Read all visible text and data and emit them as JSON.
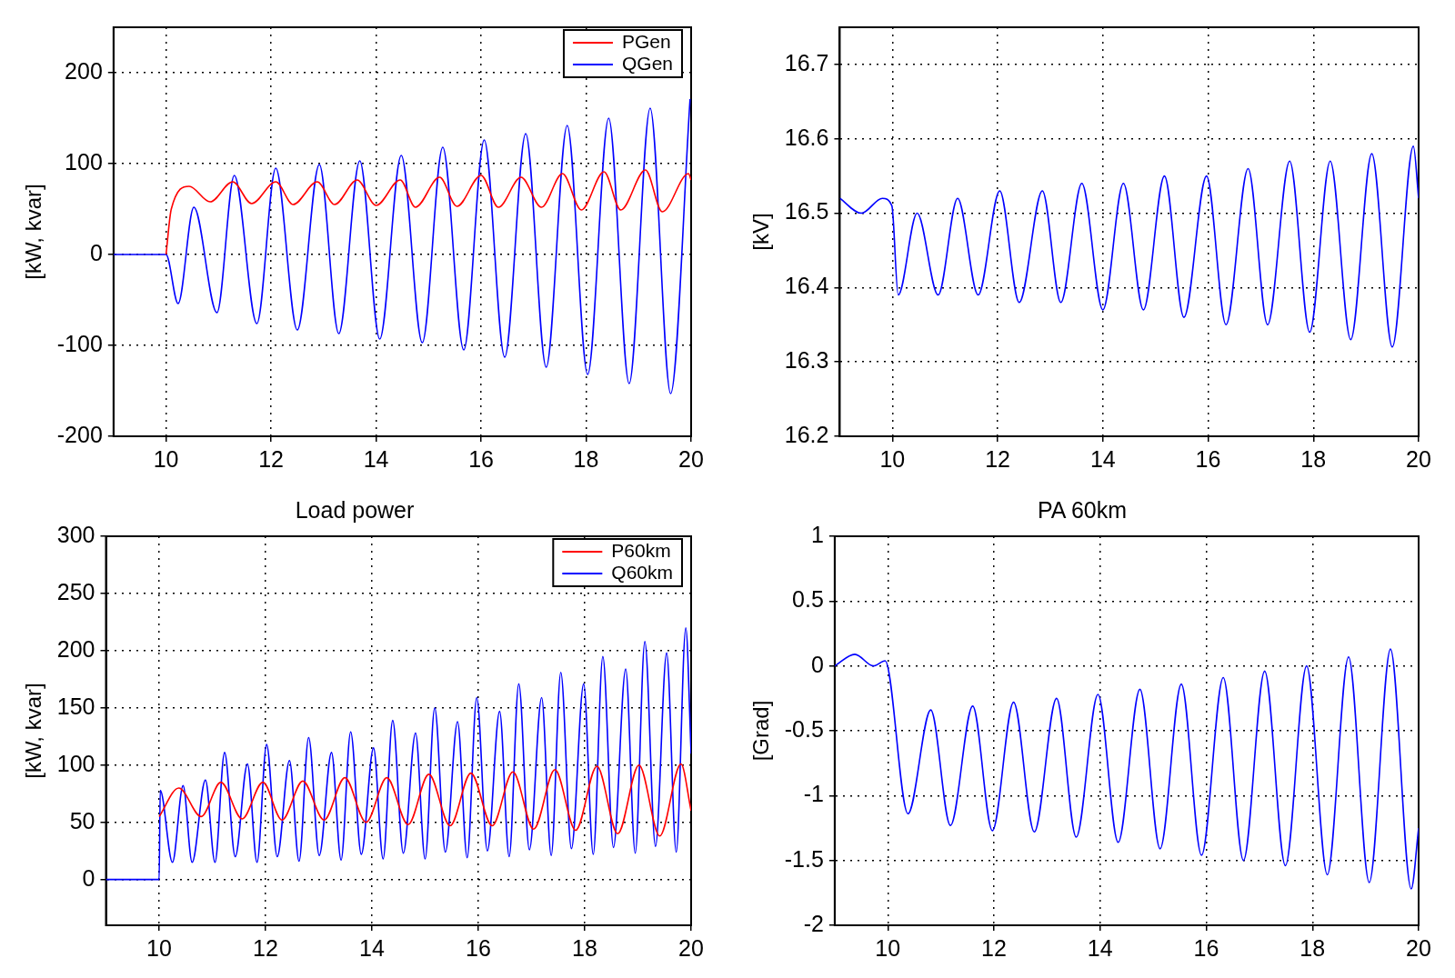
{
  "chart_data": [
    {
      "type": "line",
      "ylabel": "[kW, kvar]",
      "xlim": [
        9,
        20
      ],
      "xticks": [
        10,
        12,
        14,
        16,
        18,
        20
      ],
      "ylim": [
        -200,
        250
      ],
      "yticks": [
        -200,
        -100,
        0,
        100,
        200
      ],
      "grid": true,
      "legend": "top right",
      "marker": "none",
      "series": [
        {
          "name": "PGen",
          "color": "#ff0000",
          "x": [
            10,
            10.1,
            10.44,
            10.84,
            11.27,
            11.63,
            12.09,
            12.42,
            12.88,
            13.21,
            13.64,
            14.0,
            14.46,
            14.75,
            15.21,
            15.54,
            16.0,
            16.33,
            16.76,
            17.15,
            17.55,
            17.91,
            18.34,
            18.66,
            19.13,
            19.45,
            19.95,
            20
          ],
          "values": [
            0,
            50,
            75,
            58,
            80,
            56,
            80,
            55,
            80,
            55,
            82,
            54,
            82,
            52,
            85,
            53,
            87,
            52,
            85,
            52,
            89,
            49,
            91,
            49,
            93,
            47,
            89,
            82
          ]
        },
        {
          "name": "QGen",
          "color": "#0000ff",
          "x": [
            9,
            10,
            10.23,
            10.53,
            10.97,
            11.3,
            11.73,
            12.09,
            12.5,
            12.92,
            13.29,
            13.69,
            14.07,
            14.48,
            14.88,
            15.27,
            15.67,
            16.06,
            16.45,
            16.85,
            17.24,
            17.64,
            18.03,
            18.43,
            18.82,
            19.22,
            19.61,
            19.98
          ],
          "values": [
            0,
            0,
            -54,
            52,
            -64,
            87,
            -76,
            95,
            -83,
            99,
            -87,
            103,
            -93,
            109,
            -97,
            118,
            -105,
            126,
            -113,
            133,
            -124,
            142,
            -132,
            150,
            -142,
            161,
            -153,
            171
          ]
        }
      ]
    },
    {
      "type": "line",
      "ylabel": "[kV]",
      "xlim": [
        9,
        20
      ],
      "xticks": [
        10,
        12,
        14,
        16,
        18,
        20
      ],
      "ylim": [
        16.2,
        16.75
      ],
      "yticks": [
        16.2,
        16.3,
        16.4,
        16.5,
        16.6,
        16.7
      ],
      "grid": true,
      "marker": "none",
      "series": [
        {
          "color": "#0000ff",
          "x": [
            9,
            9.41,
            9.81,
            9.99,
            10.11,
            10.47,
            10.87,
            11.24,
            11.63,
            12.04,
            12.41,
            12.85,
            13.2,
            13.6,
            14.0,
            14.39,
            14.77,
            15.17,
            15.54,
            15.97,
            16.34,
            16.76,
            17.13,
            17.55,
            17.93,
            18.32,
            18.71,
            19.11,
            19.5,
            19.9,
            20
          ],
          "values": [
            16.52,
            16.5,
            16.52,
            16.51,
            16.39,
            16.5,
            16.39,
            16.52,
            16.39,
            16.53,
            16.38,
            16.53,
            16.38,
            16.54,
            16.37,
            16.54,
            16.37,
            16.55,
            16.36,
            16.55,
            16.35,
            16.56,
            16.35,
            16.57,
            16.34,
            16.57,
            16.33,
            16.58,
            16.32,
            16.59,
            16.52
          ]
        }
      ]
    },
    {
      "type": "line",
      "title": "Load power",
      "ylabel": "[kW, kvar]",
      "xlim": [
        9,
        20
      ],
      "xticks": [
        10,
        12,
        14,
        16,
        18,
        20
      ],
      "ylim": [
        -40,
        300
      ],
      "yticks": [
        0,
        50,
        100,
        150,
        200,
        250,
        300
      ],
      "grid": true,
      "legend": "top right",
      "marker": "none",
      "series": [
        {
          "name": "P60km",
          "color": "#ff0000",
          "x": [
            10,
            10.37,
            10.79,
            11.16,
            11.56,
            11.95,
            12.31,
            12.7,
            13.1,
            13.49,
            13.89,
            14.28,
            14.68,
            15.07,
            15.47,
            15.86,
            16.26,
            16.65,
            17.04,
            17.44,
            17.83,
            18.23,
            18.62,
            19.02,
            19.41,
            19.81,
            20
          ],
          "values": [
            55,
            80,
            55,
            85,
            53,
            85,
            52,
            86,
            52,
            89,
            50,
            89,
            48,
            92,
            47,
            93,
            47,
            94,
            44,
            96,
            43,
            99,
            40,
            100,
            38,
            101,
            60
          ]
        },
        {
          "name": "Q60km",
          "color": "#0000ff",
          "x": [
            9,
            10,
            10.02,
            10.25,
            10.45,
            10.62,
            10.87,
            11.05,
            11.23,
            11.43,
            11.66,
            11.84,
            12.02,
            12.22,
            12.45,
            12.63,
            12.81,
            13.01,
            13.24,
            13.42,
            13.6,
            13.8,
            14.03,
            14.21,
            14.39,
            14.59,
            14.82,
            15.0,
            15.18,
            15.38,
            15.61,
            15.79,
            15.97,
            16.17,
            16.4,
            16.58,
            16.76,
            16.96,
            17.19,
            17.37,
            17.55,
            17.75,
            17.98,
            18.16,
            18.34,
            18.54,
            18.77,
            18.95,
            19.13,
            19.33,
            19.54,
            19.72,
            19.9,
            20
          ],
          "values": [
            0,
            0,
            78,
            15,
            82,
            15,
            87,
            15,
            111,
            20,
            101,
            15,
            118,
            20,
            104,
            16,
            124,
            21,
            111,
            17,
            129,
            22,
            115,
            18,
            139,
            23,
            128,
            18,
            150,
            24,
            138,
            19,
            159,
            25,
            147,
            20,
            171,
            26,
            159,
            21,
            181,
            27,
            171,
            22,
            195,
            28,
            184,
            23,
            208,
            29,
            198,
            24,
            220,
            110
          ]
        }
      ]
    },
    {
      "type": "line",
      "title": "PA 60km",
      "ylabel": "[Grad]",
      "xlim": [
        9,
        20
      ],
      "xticks": [
        10,
        12,
        14,
        16,
        18,
        20
      ],
      "ylim": [
        -2,
        1
      ],
      "yticks": [
        -2,
        -1.5,
        -1,
        -0.5,
        0,
        0.5,
        1
      ],
      "grid": true,
      "marker": "none",
      "series": [
        {
          "color": "#0000ff",
          "x": [
            9,
            9.38,
            9.73,
            9.95,
            10.38,
            10.81,
            11.18,
            11.6,
            11.97,
            12.37,
            12.76,
            13.18,
            13.55,
            13.96,
            14.34,
            14.75,
            15.13,
            15.53,
            15.91,
            16.32,
            16.7,
            17.1,
            17.49,
            17.89,
            18.28,
            18.68,
            19.07,
            19.47,
            19.86,
            20
          ],
          "values": [
            0,
            0.09,
            0,
            0.04,
            -1.14,
            -0.34,
            -1.23,
            -0.31,
            -1.27,
            -0.28,
            -1.28,
            -0.25,
            -1.32,
            -0.22,
            -1.36,
            -0.18,
            -1.41,
            -0.14,
            -1.46,
            -0.09,
            -1.5,
            -0.04,
            -1.54,
            0,
            -1.61,
            0.07,
            -1.67,
            0.13,
            -1.72,
            -1.25
          ]
        }
      ]
    }
  ]
}
